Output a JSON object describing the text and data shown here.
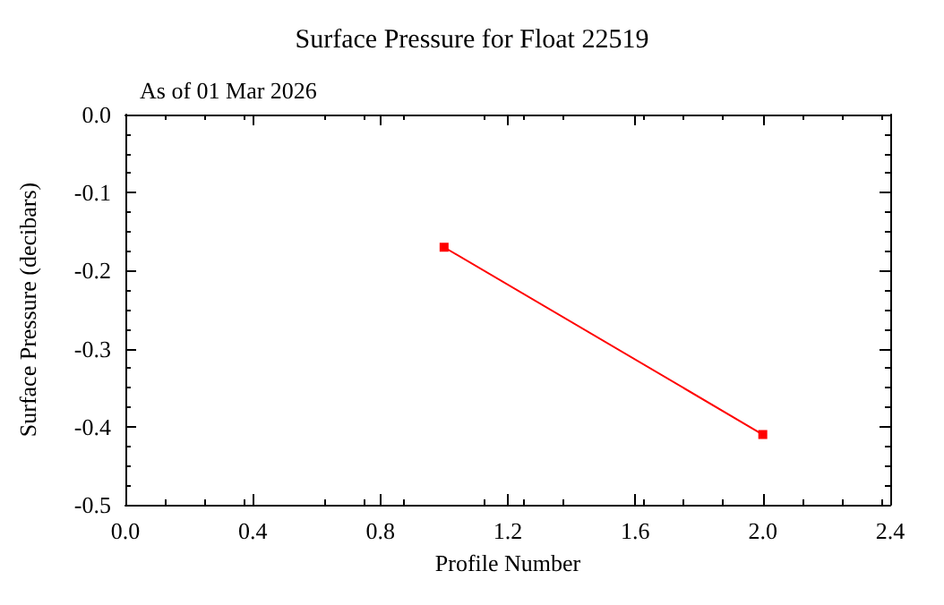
{
  "chart_data": {
    "type": "line",
    "title": "Surface Pressure for Float 22519",
    "annotations": [
      "As of 01 Mar 2026"
    ],
    "xlabel": "Profile Number",
    "ylabel": "Surface Pressure (decibars)",
    "x": [
      1,
      2
    ],
    "series": [
      {
        "color": "#ff0000",
        "values": [
          -0.17,
          -0.41
        ]
      }
    ],
    "marker": "square",
    "line_style": "solid",
    "grid": false,
    "xlim": [
      0,
      2.4
    ],
    "xticks": [
      {
        "value": 0,
        "label": "0.0"
      },
      {
        "value": 0.4,
        "label": "0.4"
      },
      {
        "value": 0.8,
        "label": "0.8"
      },
      {
        "value": 1.2,
        "label": "1.2"
      },
      {
        "value": 1.6,
        "label": "1.6"
      },
      {
        "value": 2.0,
        "label": "2.0"
      },
      {
        "value": 2.4,
        "label": "2.4"
      }
    ],
    "ylim": [
      -0.5,
      0
    ],
    "yticks": [
      {
        "value": -0.5,
        "label": "-0.5"
      },
      {
        "value": -0.4,
        "label": "-0.4"
      },
      {
        "value": -0.3,
        "label": "-0.3"
      },
      {
        "value": -0.2,
        "label": "-0.2"
      },
      {
        "value": -0.1,
        "label": "-0.1"
      },
      {
        "value": 0,
        "label": "0.0"
      }
    ]
  }
}
